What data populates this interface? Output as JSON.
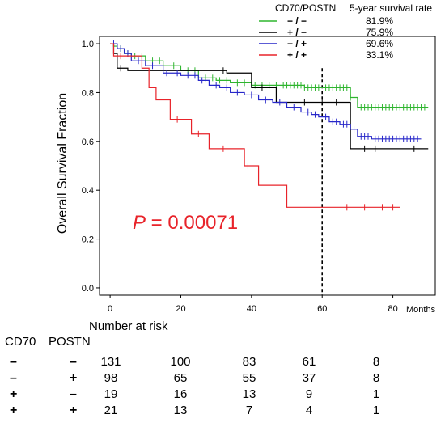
{
  "chart_data": {
    "type": "line",
    "ylabel": "Overall Survival Fraction",
    "xunit": "Months",
    "xlim": [
      -3,
      92
    ],
    "ylim": [
      -0.03,
      1.03
    ],
    "xticks": [
      0,
      20,
      40,
      60,
      80
    ],
    "yticks": [
      "0.0",
      "0.2",
      "0.4",
      "0.6",
      "0.8",
      "1.0"
    ],
    "reference_line_x": 60,
    "annotation": {
      "italic": "P",
      "text": " = 0.00071"
    },
    "legend": {
      "position": "top-right",
      "header_group": "CD70/POSTN",
      "header_rate": "5-year survival rate"
    },
    "series": [
      {
        "color": "#2fb52f",
        "group": "−  /  −",
        "rate": "81.9%",
        "points": [
          [
            0,
            1.0
          ],
          [
            1,
            0.99
          ],
          [
            2,
            0.98
          ],
          [
            4,
            0.96
          ],
          [
            6,
            0.95
          ],
          [
            10,
            0.93
          ],
          [
            15,
            0.91
          ],
          [
            20,
            0.89
          ],
          [
            25,
            0.86
          ],
          [
            30,
            0.85
          ],
          [
            34,
            0.84
          ],
          [
            40,
            0.83
          ],
          [
            48,
            0.83
          ],
          [
            55,
            0.82
          ],
          [
            60,
            0.82
          ],
          [
            64,
            0.82
          ],
          [
            68,
            0.78
          ],
          [
            70,
            0.74
          ],
          [
            90,
            0.74
          ]
        ],
        "censor": [
          3,
          5,
          7,
          9,
          12,
          14,
          18,
          22,
          24,
          27,
          29,
          31,
          33,
          36,
          38,
          41,
          43,
          45,
          47,
          49,
          50,
          51,
          52,
          53,
          54,
          55,
          56,
          57,
          58,
          59,
          61,
          62,
          63,
          64,
          65,
          66,
          67,
          68,
          71,
          72,
          73,
          74,
          75,
          76,
          77,
          78,
          79,
          80,
          81,
          82,
          83,
          84,
          85,
          86,
          87,
          88,
          89
        ]
      },
      {
        "color": "#000000",
        "group": "+  /  −",
        "rate": "75.9%",
        "points": [
          [
            0,
            1.0
          ],
          [
            1,
            0.96
          ],
          [
            2,
            0.9
          ],
          [
            5,
            0.89
          ],
          [
            20,
            0.89
          ],
          [
            33,
            0.88
          ],
          [
            40,
            0.82
          ],
          [
            47,
            0.76
          ],
          [
            62,
            0.76
          ],
          [
            68,
            0.57
          ],
          [
            90,
            0.57
          ]
        ],
        "censor": [
          3,
          32,
          43,
          55,
          60,
          64,
          72,
          75,
          86
        ]
      },
      {
        "color": "#2727c9",
        "group": "−  /  +",
        "rate": "69.6%",
        "points": [
          [
            0,
            1.0
          ],
          [
            2,
            0.98
          ],
          [
            4,
            0.96
          ],
          [
            6,
            0.93
          ],
          [
            10,
            0.91
          ],
          [
            15,
            0.88
          ],
          [
            20,
            0.87
          ],
          [
            25,
            0.85
          ],
          [
            28,
            0.83
          ],
          [
            31,
            0.82
          ],
          [
            34,
            0.8
          ],
          [
            38,
            0.79
          ],
          [
            42,
            0.77
          ],
          [
            46,
            0.76
          ],
          [
            50,
            0.74
          ],
          [
            54,
            0.72
          ],
          [
            57,
            0.71
          ],
          [
            59,
            0.7
          ],
          [
            60,
            0.7
          ],
          [
            62,
            0.68
          ],
          [
            65,
            0.67
          ],
          [
            68,
            0.65
          ],
          [
            70,
            0.62
          ],
          [
            74,
            0.61
          ],
          [
            88,
            0.61
          ]
        ],
        "censor": [
          1,
          3,
          5,
          8,
          12,
          16,
          19,
          22,
          24,
          26,
          30,
          33,
          36,
          40,
          44,
          48,
          52,
          56,
          58,
          61,
          63,
          64,
          66,
          67,
          69,
          71,
          72,
          73,
          75,
          76,
          77,
          78,
          79,
          80,
          81,
          82,
          83,
          84,
          85,
          86,
          87
        ]
      },
      {
        "color": "#e8232a",
        "group": "+  /  +",
        "rate": "33.1%",
        "points": [
          [
            0,
            1.0
          ],
          [
            1,
            0.95
          ],
          [
            9,
            0.9
          ],
          [
            11,
            0.82
          ],
          [
            13,
            0.77
          ],
          [
            17,
            0.69
          ],
          [
            23,
            0.63
          ],
          [
            28,
            0.57
          ],
          [
            38,
            0.5
          ],
          [
            42,
            0.42
          ],
          [
            50,
            0.33
          ],
          [
            82,
            0.33
          ]
        ],
        "censor": [
          3,
          19,
          25,
          32,
          39,
          67,
          72,
          77,
          80
        ]
      }
    ]
  },
  "risk_table": {
    "title": "Number at risk",
    "col_cd70": "CD70",
    "col_postn": "POSTN",
    "rows": [
      {
        "cd70": "–",
        "postn": "–",
        "counts": [
          "131",
          "100",
          "83",
          "61",
          "8"
        ]
      },
      {
        "cd70": "–",
        "postn": "+",
        "counts": [
          "98",
          "65",
          "55",
          "37",
          "8"
        ]
      },
      {
        "cd70": "+",
        "postn": "–",
        "counts": [
          "19",
          "16",
          "13",
          "9",
          "1"
        ]
      },
      {
        "cd70": "+",
        "postn": "+",
        "counts": [
          "21",
          "13",
          "7",
          "4",
          "1"
        ]
      }
    ]
  }
}
